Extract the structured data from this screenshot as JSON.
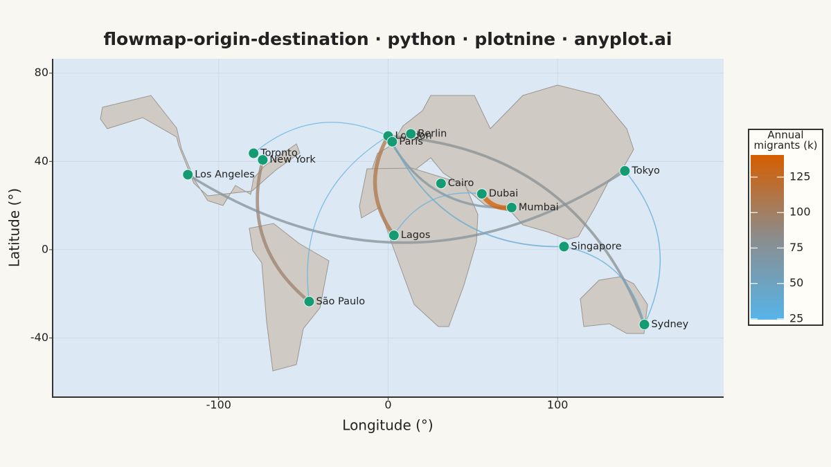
{
  "chart_data": {
    "type": "flowmap",
    "title": "flowmap-origin-destination · python · plotnine · anyplot.ai",
    "xlabel": "Longitude (°)",
    "ylabel": "Latitude (°)",
    "xlim": [
      -198,
      198
    ],
    "ylim": [
      -66.5,
      86.5
    ],
    "xticks": [
      -100,
      0,
      100
    ],
    "yticks": [
      -40,
      0,
      40,
      80
    ],
    "grid": true,
    "point_color": "#159b74",
    "cities": [
      {
        "name": "London",
        "lon": 0,
        "lat": 51.5
      },
      {
        "name": "Paris",
        "lon": 2.4,
        "lat": 48.9
      },
      {
        "name": "Berlin",
        "lon": 13.4,
        "lat": 52.5
      },
      {
        "name": "Toronto",
        "lon": -79.4,
        "lat": 43.7
      },
      {
        "name": "New York",
        "lon": -74,
        "lat": 40.7
      },
      {
        "name": "Los Angeles",
        "lon": -118.2,
        "lat": 34
      },
      {
        "name": "Tokyo",
        "lon": 139.7,
        "lat": 35.7
      },
      {
        "name": "Cairo",
        "lon": 31.2,
        "lat": 30
      },
      {
        "name": "Dubai",
        "lon": 55.3,
        "lat": 25.3
      },
      {
        "name": "Mumbai",
        "lon": 72.9,
        "lat": 19.1
      },
      {
        "name": "Lagos",
        "lon": 3.4,
        "lat": 6.5
      },
      {
        "name": "Singapore",
        "lon": 103.8,
        "lat": 1.4
      },
      {
        "name": "São Paulo",
        "lon": -46.6,
        "lat": -23.5
      },
      {
        "name": "Sydney",
        "lon": 151.2,
        "lat": -33.9
      }
    ],
    "flows": [
      {
        "origin": "London",
        "destination": "Toronto",
        "value": 30
      },
      {
        "origin": "New York",
        "destination": "São Paulo",
        "value": 95
      },
      {
        "origin": "Los Angeles",
        "destination": "Tokyo",
        "value": 75
      },
      {
        "origin": "London",
        "destination": "Lagos",
        "value": 110
      },
      {
        "origin": "Sydney",
        "destination": "London",
        "value": 78
      },
      {
        "origin": "London",
        "destination": "Mumbai",
        "value": 70
      },
      {
        "origin": "Dubai",
        "destination": "Mumbai",
        "value": 140
      },
      {
        "origin": "Dubai",
        "destination": "Lagos",
        "value": 30
      },
      {
        "origin": "London",
        "destination": "São Paulo",
        "value": 30
      },
      {
        "origin": "Sydney",
        "destination": "Tokyo",
        "value": 35
      },
      {
        "origin": "Sydney",
        "destination": "Singapore",
        "value": 35
      },
      {
        "origin": "Paris",
        "destination": "Singapore",
        "value": 40
      }
    ],
    "colorbar_title": "Annual migrants (k)",
    "clim": [
      24.5,
      140.6
    ],
    "cticks": [
      25,
      50,
      75,
      100,
      125
    ],
    "colors": [
      "#56b4e9",
      "#8c8c8c",
      "#d55e00"
    ]
  }
}
